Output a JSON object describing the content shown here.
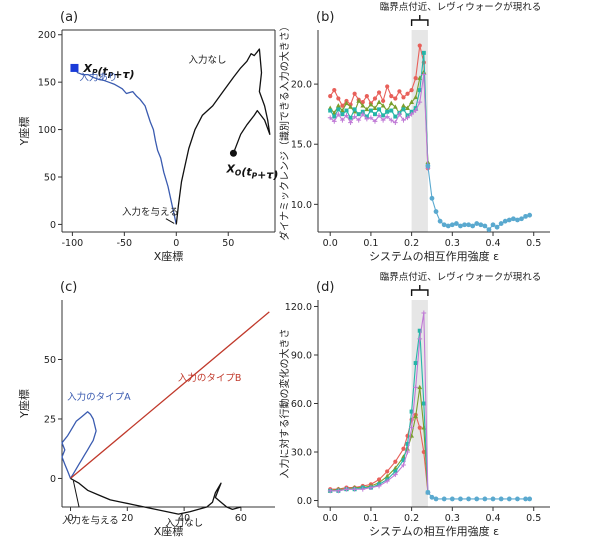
{
  "chart_data": [
    {
      "panel": "(a)",
      "type": "line",
      "xlabel": "X座標",
      "ylabel": "Y座標",
      "xlim": [
        -110,
        95
      ],
      "ylim": [
        -8,
        205
      ],
      "xticks": [
        -100,
        -50,
        0,
        50
      ],
      "yticks": [
        0,
        50,
        100,
        150,
        200
      ],
      "series": [
        {
          "name": "入力あり",
          "color": "#3a5bb0",
          "x": [
            0,
            -2,
            -5,
            -8,
            -12,
            -15,
            -18,
            -20,
            -22,
            -25,
            -28,
            -30,
            -35,
            -38,
            -42,
            -48,
            -52,
            -55,
            -60,
            -65,
            -70,
            -75,
            -80,
            -85,
            -90,
            -95,
            -98
          ],
          "y": [
            0,
            10,
            25,
            40,
            55,
            70,
            78,
            88,
            100,
            108,
            118,
            125,
            132,
            135,
            140,
            138,
            143,
            145,
            148,
            150,
            152,
            153,
            155,
            158,
            158,
            160,
            165
          ]
        },
        {
          "name": "入力なし",
          "color": "#111111",
          "x": [
            0,
            2,
            5,
            8,
            12,
            18,
            25,
            35,
            45,
            55,
            62,
            68,
            72,
            75,
            78,
            80,
            82,
            80,
            85,
            88,
            90,
            85,
            78,
            75,
            68,
            62,
            55
          ],
          "y": [
            0,
            20,
            45,
            60,
            80,
            100,
            115,
            125,
            140,
            155,
            165,
            172,
            180,
            178,
            182,
            185,
            160,
            140,
            125,
            110,
            95,
            110,
            120,
            115,
            105,
            95,
            75
          ]
        }
      ],
      "markers": [
        {
          "label_main": "X",
          "label_sub": "P",
          "label_tail": "(t",
          "label_tsub": "P",
          "label_end": "+τ)",
          "x": -98,
          "y": 165,
          "shape": "square",
          "color": "#1a3bd8"
        },
        {
          "label_main": "X",
          "label_sub": "O",
          "label_tail": "(t",
          "label_tsub": "P",
          "label_end": "+τ)",
          "x": 55,
          "y": 75,
          "shape": "circle",
          "color": "#111111"
        }
      ],
      "annotations": {
        "input_start": "入力を与える",
        "with_input": "入力あり",
        "no_input": "入力なし"
      }
    },
    {
      "panel": "(b)",
      "type": "line",
      "xlabel": "システムの相互作用強度 ε",
      "ylabel": "ダイナミックレンジ（識別できる入力の大きさ）",
      "xlim": [
        -0.03,
        0.54
      ],
      "ylim": [
        7.7,
        24.5
      ],
      "xticks": [
        0.0,
        0.1,
        0.2,
        0.3,
        0.4,
        0.5
      ],
      "yticks": [
        10,
        15,
        20
      ],
      "shaded_band": [
        0.2,
        0.24
      ],
      "bracket_label": "臨界点付近、レヴィウォークが現れる",
      "series": [
        {
          "name": "",
          "color": "#e8605a",
          "x": [
            0.0,
            0.01,
            0.02,
            0.03,
            0.04,
            0.05,
            0.06,
            0.07,
            0.08,
            0.09,
            0.1,
            0.11,
            0.12,
            0.13,
            0.14,
            0.15,
            0.16,
            0.17,
            0.18,
            0.19,
            0.2,
            0.21,
            0.22,
            0.23,
            0.24
          ],
          "y": [
            19.0,
            19.5,
            18.8,
            18.2,
            18.6,
            18.3,
            19.2,
            18.7,
            18.5,
            19.0,
            18.4,
            18.8,
            19.3,
            18.6,
            19.8,
            19.0,
            18.8,
            19.4,
            18.9,
            19.2,
            19.5,
            20.5,
            23.2,
            21.8,
            13.0
          ]
        },
        {
          "name": "",
          "color": "#7a9e2c",
          "x": [
            0.0,
            0.01,
            0.02,
            0.03,
            0.04,
            0.05,
            0.06,
            0.07,
            0.08,
            0.09,
            0.1,
            0.11,
            0.12,
            0.13,
            0.14,
            0.15,
            0.16,
            0.17,
            0.18,
            0.19,
            0.2,
            0.21,
            0.22,
            0.23,
            0.24
          ],
          "y": [
            18.0,
            17.6,
            18.2,
            17.8,
            18.4,
            18.1,
            17.7,
            18.6,
            18.2,
            17.9,
            18.3,
            18.0,
            18.5,
            18.2,
            17.8,
            18.4,
            18.1,
            17.6,
            18.2,
            18.0,
            18.5,
            18.9,
            20.5,
            21.0,
            13.5
          ]
        },
        {
          "name": "",
          "color": "#25b5a8",
          "x": [
            0.0,
            0.01,
            0.02,
            0.03,
            0.04,
            0.05,
            0.06,
            0.07,
            0.08,
            0.09,
            0.1,
            0.11,
            0.12,
            0.13,
            0.14,
            0.15,
            0.16,
            0.17,
            0.18,
            0.19,
            0.2,
            0.21,
            0.22,
            0.23,
            0.24
          ],
          "y": [
            17.8,
            17.3,
            17.9,
            17.5,
            17.8,
            17.2,
            17.9,
            17.5,
            17.7,
            17.3,
            17.8,
            17.5,
            17.9,
            17.4,
            17.7,
            17.8,
            17.3,
            17.6,
            17.9,
            17.4,
            17.7,
            18.0,
            19.5,
            22.6,
            13.2
          ]
        },
        {
          "name": "",
          "color": "#c07ad6",
          "x": [
            0.0,
            0.01,
            0.02,
            0.03,
            0.04,
            0.05,
            0.06,
            0.07,
            0.08,
            0.09,
            0.1,
            0.11,
            0.12,
            0.13,
            0.14,
            0.15,
            0.16,
            0.17,
            0.18,
            0.19,
            0.2,
            0.21,
            0.22,
            0.23,
            0.24
          ],
          "y": [
            17.2,
            16.9,
            17.5,
            17.0,
            17.4,
            16.8,
            17.3,
            17.0,
            17.5,
            17.1,
            17.2,
            16.9,
            17.4,
            17.0,
            17.3,
            17.0,
            16.8,
            17.5,
            17.0,
            17.2,
            17.5,
            17.8,
            18.5,
            20.8,
            13.0
          ]
        },
        {
          "name": "",
          "color": "#5aa9cf",
          "x": [
            0.24,
            0.25,
            0.26,
            0.27,
            0.28,
            0.29,
            0.3,
            0.31,
            0.32,
            0.33,
            0.34,
            0.35,
            0.36,
            0.37,
            0.38,
            0.39,
            0.4,
            0.41,
            0.42,
            0.43,
            0.44,
            0.45,
            0.46,
            0.47,
            0.48,
            0.49
          ],
          "y": [
            13.2,
            10.5,
            9.4,
            8.6,
            8.3,
            8.2,
            8.3,
            8.4,
            8.2,
            8.3,
            8.3,
            8.2,
            8.4,
            8.3,
            8.2,
            7.9,
            8.3,
            8.1,
            8.4,
            8.6,
            8.7,
            8.8,
            8.7,
            8.8,
            9.0,
            9.1
          ]
        }
      ]
    },
    {
      "panel": "(c)",
      "type": "line",
      "xlabel": "X座標",
      "ylabel": "Y座標",
      "xlim": [
        -3,
        72
      ],
      "ylim": [
        -12,
        75
      ],
      "xticks": [
        0,
        20,
        40,
        60
      ],
      "yticks": [
        0,
        25,
        50
      ],
      "series": [
        {
          "name": "入力のタイプA",
          "color": "#3a5bb0",
          "x": [
            0,
            -1,
            -2,
            -3,
            -2,
            -3,
            -1,
            0,
            1,
            2,
            3,
            4,
            5,
            6,
            7,
            8,
            9,
            8,
            7,
            6,
            5,
            4,
            3,
            2,
            1,
            0
          ],
          "y": [
            0,
            3,
            6,
            9,
            12,
            15,
            18,
            20,
            22,
            24,
            25,
            26,
            27,
            28,
            27,
            25,
            20,
            16,
            14,
            12,
            10,
            8,
            6,
            4,
            2,
            0
          ]
        },
        {
          "name": "入力のタイプB",
          "color": "#c0392b",
          "x": [
            0,
            70
          ],
          "y": [
            0,
            70
          ]
        },
        {
          "name": "入力なし",
          "color": "#111111",
          "x": [
            0,
            3,
            6,
            10,
            14,
            18,
            22,
            26,
            30,
            34,
            38,
            42,
            45,
            48,
            50,
            51,
            52,
            53,
            52,
            51,
            53,
            55,
            57,
            60
          ],
          "y": [
            0,
            -2,
            -5,
            -7,
            -9,
            -10,
            -11,
            -12,
            -13,
            -14,
            -15,
            -14,
            -13,
            -12,
            -10,
            -6,
            -4,
            -2,
            -5,
            -8,
            -10,
            -12,
            -13,
            -12
          ]
        }
      ],
      "annotations": {
        "input_start": "入力を与える",
        "type_a": "入力のタイプA",
        "type_b": "入力のタイプB",
        "no_input": "入力なし"
      }
    },
    {
      "panel": "(d)",
      "type": "line",
      "xlabel": "システムの相互作用強度 ε",
      "ylabel": "入力に対する行動の変化の大きさ",
      "xlim": [
        -0.03,
        0.54
      ],
      "ylim": [
        -4,
        124
      ],
      "xticks": [
        0.0,
        0.1,
        0.2,
        0.3,
        0.4,
        0.5
      ],
      "yticks": [
        0,
        30,
        60,
        90,
        120
      ],
      "shaded_band": [
        0.2,
        0.24
      ],
      "bracket_label": "臨界点付近、レヴィウォークが現れる",
      "series": [
        {
          "name": "",
          "color": "#e8605a",
          "x": [
            0.0,
            0.02,
            0.04,
            0.06,
            0.08,
            0.1,
            0.12,
            0.14,
            0.16,
            0.18,
            0.19,
            0.2,
            0.21,
            0.22,
            0.23,
            0.24
          ],
          "y": [
            7,
            7,
            8,
            8,
            9,
            10,
            13,
            18,
            24,
            32,
            40,
            50,
            53,
            45,
            30,
            5
          ]
        },
        {
          "name": "",
          "color": "#7a9e2c",
          "x": [
            0.0,
            0.02,
            0.04,
            0.06,
            0.08,
            0.1,
            0.12,
            0.14,
            0.16,
            0.18,
            0.19,
            0.2,
            0.21,
            0.22,
            0.23,
            0.24
          ],
          "y": [
            6,
            7,
            7,
            8,
            8,
            9,
            11,
            15,
            20,
            27,
            32,
            40,
            52,
            70,
            45,
            5
          ]
        },
        {
          "name": "",
          "color": "#25b5a8",
          "x": [
            0.0,
            0.02,
            0.04,
            0.06,
            0.08,
            0.1,
            0.12,
            0.14,
            0.16,
            0.18,
            0.19,
            0.2,
            0.21,
            0.22,
            0.23,
            0.24
          ],
          "y": [
            6,
            6,
            7,
            7,
            8,
            8,
            10,
            13,
            18,
            25,
            35,
            55,
            85,
            105,
            60,
            5
          ]
        },
        {
          "name": "",
          "color": "#c07ad6",
          "x": [
            0.0,
            0.02,
            0.04,
            0.06,
            0.08,
            0.1,
            0.12,
            0.14,
            0.16,
            0.18,
            0.19,
            0.2,
            0.21,
            0.22,
            0.23,
            0.24
          ],
          "y": [
            6,
            6,
            7,
            7,
            7,
            8,
            9,
            12,
            16,
            22,
            30,
            45,
            70,
            100,
            116,
            5
          ]
        },
        {
          "name": "",
          "color": "#5aa9cf",
          "x": [
            0.24,
            0.25,
            0.26,
            0.28,
            0.3,
            0.32,
            0.34,
            0.36,
            0.38,
            0.4,
            0.42,
            0.44,
            0.46,
            0.48,
            0.49
          ],
          "y": [
            5,
            2,
            1,
            1,
            1,
            1,
            1,
            1,
            1,
            1,
            1,
            1,
            1,
            1,
            1
          ]
        }
      ]
    }
  ]
}
